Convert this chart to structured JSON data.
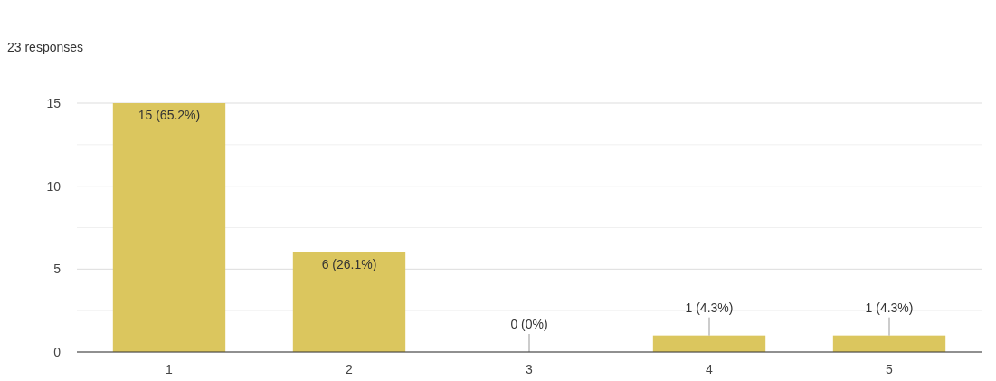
{
  "chart_data": {
    "type": "bar",
    "subtitle": "23 responses",
    "categories": [
      "1",
      "2",
      "3",
      "4",
      "5"
    ],
    "values": [
      15,
      6,
      0,
      1,
      1
    ],
    "value_labels": [
      "15 (65.2%)",
      "6 (26.1%)",
      "0 (0%)",
      "1 (4.3%)",
      "1 (4.3%)"
    ],
    "color": "#dbc65e",
    "ylim": [
      0,
      15
    ],
    "yticks": [
      0,
      {
        "value": 2.5,
        "label": null
      },
      5,
      {
        "value": 7.5,
        "label": null
      },
      10,
      {
        "value": 12.5,
        "label": null
      },
      15
    ],
    "grid": "y"
  }
}
